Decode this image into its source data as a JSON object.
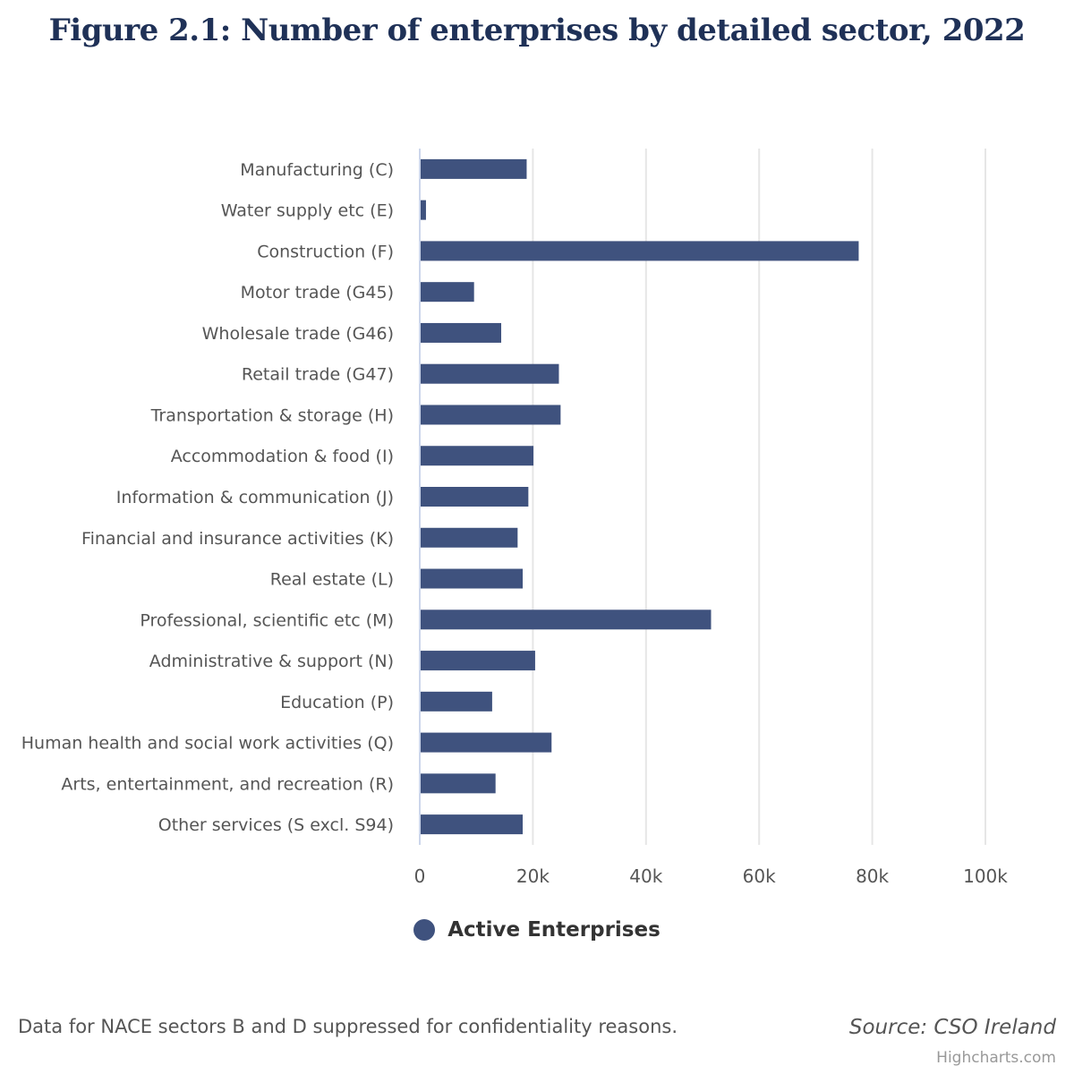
{
  "chart_data": {
    "type": "bar",
    "orientation": "horizontal",
    "title": "Figure 2.1: Number of enterprises by detailed sector, 2022",
    "categories": [
      "Manufacturing (C)",
      "Water supply etc (E)",
      "Construction (F)",
      "Motor trade (G45)",
      "Wholesale trade (G46)",
      "Retail trade (G47)",
      "Transportation & storage (H)",
      "Accommodation & food (I)",
      "Information & communication (J)",
      "Financial and insurance activities (K)",
      "Real estate (L)",
      "Professional, scientific etc (M)",
      "Administrative & support (N)",
      "Education (P)",
      "Human health and social work activities (Q)",
      "Arts, entertainment, and recreation (R)",
      "Other services (S excl. S94)"
    ],
    "series": [
      {
        "name": "Active Enterprises",
        "color": "#3f527e",
        "values": [
          18900,
          1100,
          77600,
          9600,
          14400,
          24600,
          24900,
          20100,
          19200,
          17300,
          18200,
          51500,
          20400,
          12800,
          23300,
          13400,
          18200
        ]
      }
    ],
    "xlim": [
      0,
      100000
    ],
    "ticks": [
      {
        "value": 0,
        "label": "0"
      },
      {
        "value": 20000,
        "label": "20k"
      },
      {
        "value": 40000,
        "label": "40k"
      },
      {
        "value": 60000,
        "label": "60k"
      },
      {
        "value": 80000,
        "label": "80k"
      },
      {
        "value": 100000,
        "label": "100k"
      }
    ],
    "grid": true,
    "legend": "bottom-center"
  },
  "legend": {
    "label": "Active Enterprises"
  },
  "caption": {
    "note": "Data for NACE sectors B and D suppressed for confidentiality reasons.",
    "source": "Source: CSO Ireland",
    "credit": "Highcharts.com"
  }
}
